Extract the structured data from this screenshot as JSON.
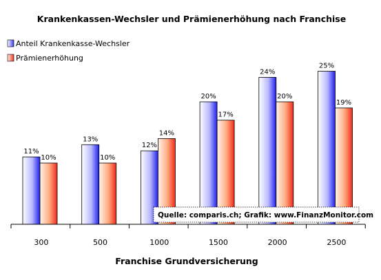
{
  "chart_data": {
    "type": "bar",
    "title": "Krankenkassen-Wechsler und Prämienerhöhung nach Franchise",
    "xlabel": "Franchise Grundversicherung",
    "ylabel": "",
    "categories": [
      "300",
      "500",
      "1000",
      "1500",
      "2000",
      "2500"
    ],
    "series": [
      {
        "name": "Anteil Krankenkasse-Wechsler",
        "values": [
          11,
          13,
          12,
          20,
          24,
          25
        ],
        "labels": [
          "11%",
          "13%",
          "12%",
          "20%",
          "24%",
          "25%"
        ],
        "color": "#3a3af0"
      },
      {
        "name": "Prämienerhöhung",
        "values": [
          10,
          10,
          14,
          17,
          20,
          19
        ],
        "labels": [
          "10%",
          "10%",
          "14%",
          "17%",
          "20%",
          "19%"
        ],
        "color": "#f03a2a"
      }
    ],
    "ylim": [
      0,
      28
    ],
    "grid": false,
    "legend": "top-left",
    "annotation": "Quelle: comparis.ch; Grafik: www.FinanzMonitor.com"
  }
}
